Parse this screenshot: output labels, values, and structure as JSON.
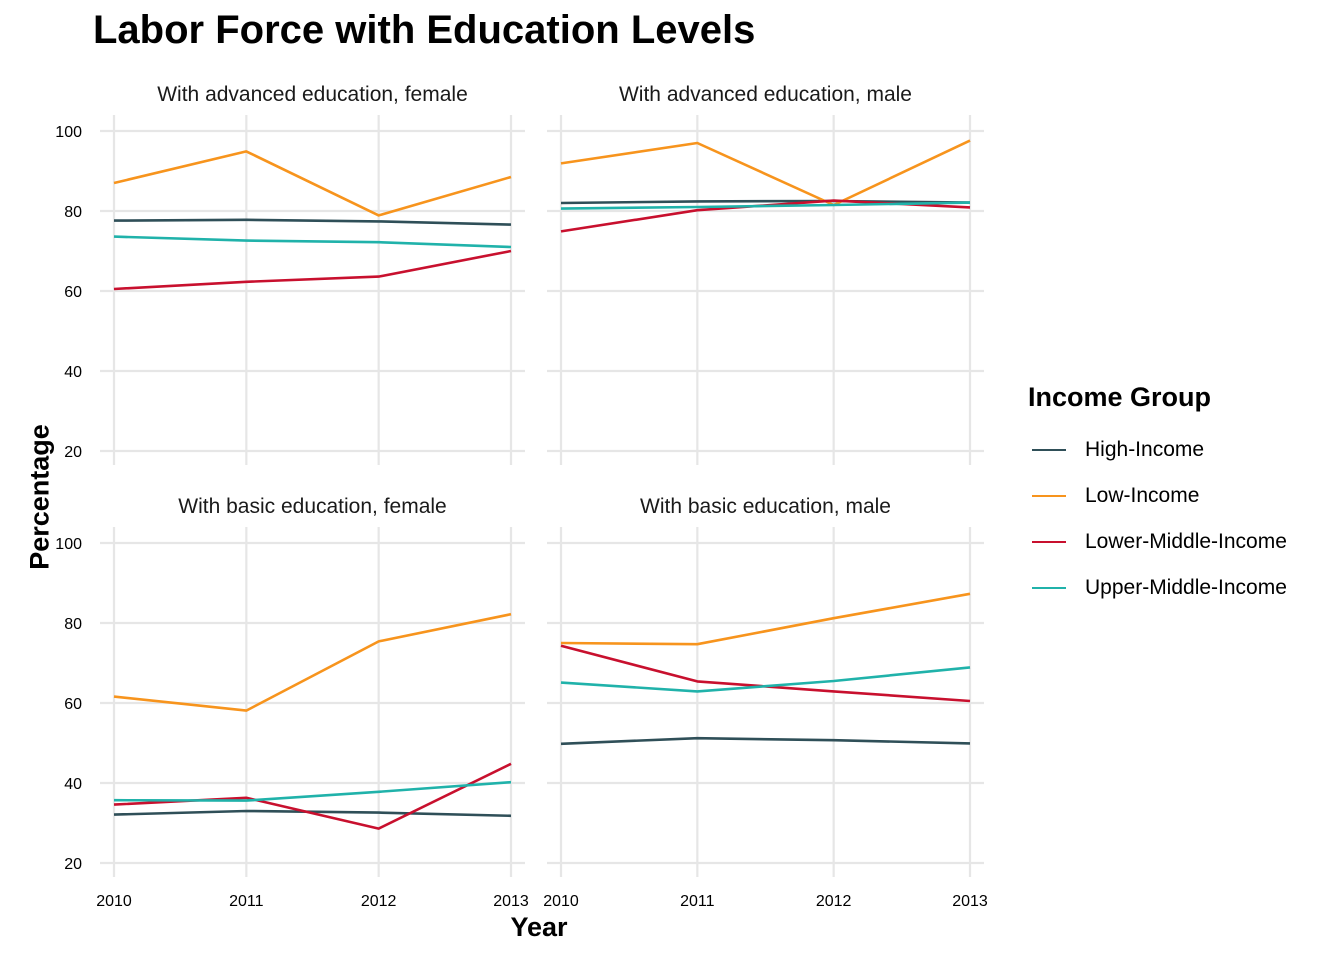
{
  "chart_data": {
    "type": "line",
    "title": "Labor Force with Education Levels",
    "xlabel": "Year",
    "ylabel": "Percentage",
    "x": [
      2010,
      2011,
      2012,
      2013
    ],
    "xlim": [
      2010,
      2013
    ],
    "ylim": [
      20,
      100
    ],
    "yticks": [
      20,
      40,
      60,
      80,
      100
    ],
    "grid": true,
    "legend": {
      "title": "Income Group",
      "placement": "right",
      "entries": [
        "High-Income",
        "Low-Income",
        "Lower-Middle-Income",
        "Upper-Middle-Income"
      ]
    },
    "colors": {
      "High-Income": "#2f4f58",
      "Low-Income": "#f7941d",
      "Lower-Middle-Income": "#c8102e",
      "Upper-Middle-Income": "#20b2aa"
    },
    "panels": [
      {
        "title": "With advanced education, female",
        "series": [
          {
            "name": "High-Income",
            "values": [
              77.6,
              77.8,
              77.4,
              76.6
            ]
          },
          {
            "name": "Low-Income",
            "values": [
              87.0,
              94.9,
              78.9,
              88.5
            ]
          },
          {
            "name": "Lower-Middle-Income",
            "values": [
              60.5,
              62.3,
              63.6,
              70.0
            ]
          },
          {
            "name": "Upper-Middle-Income",
            "values": [
              73.6,
              72.6,
              72.2,
              71.0
            ]
          }
        ]
      },
      {
        "title": "With advanced education, male",
        "series": [
          {
            "name": "High-Income",
            "values": [
              82.0,
              82.4,
              82.5,
              82.1
            ]
          },
          {
            "name": "Low-Income",
            "values": [
              91.9,
              97.0,
              81.5,
              97.6
            ]
          },
          {
            "name": "Lower-Middle-Income",
            "values": [
              74.9,
              80.2,
              82.6,
              80.9
            ]
          },
          {
            "name": "Upper-Middle-Income",
            "values": [
              80.6,
              81.0,
              81.5,
              82.1
            ]
          }
        ]
      },
      {
        "title": "With basic education, female",
        "series": [
          {
            "name": "High-Income",
            "values": [
              32.1,
              33.0,
              32.6,
              31.8
            ]
          },
          {
            "name": "Low-Income",
            "values": [
              61.6,
              58.1,
              75.4,
              82.2
            ]
          },
          {
            "name": "Lower-Middle-Income",
            "values": [
              34.6,
              36.3,
              28.6,
              44.8
            ]
          },
          {
            "name": "Upper-Middle-Income",
            "values": [
              35.7,
              35.6,
              37.8,
              40.2
            ]
          }
        ]
      },
      {
        "title": "With basic education, male",
        "series": [
          {
            "name": "High-Income",
            "values": [
              49.8,
              51.2,
              50.7,
              49.9
            ]
          },
          {
            "name": "Low-Income",
            "values": [
              75.0,
              74.7,
              81.2,
              87.3
            ]
          },
          {
            "name": "Lower-Middle-Income",
            "values": [
              74.3,
              65.4,
              62.9,
              60.5
            ]
          },
          {
            "name": "Upper-Middle-Income",
            "values": [
              65.1,
              62.9,
              65.5,
              68.9
            ]
          }
        ]
      }
    ]
  }
}
